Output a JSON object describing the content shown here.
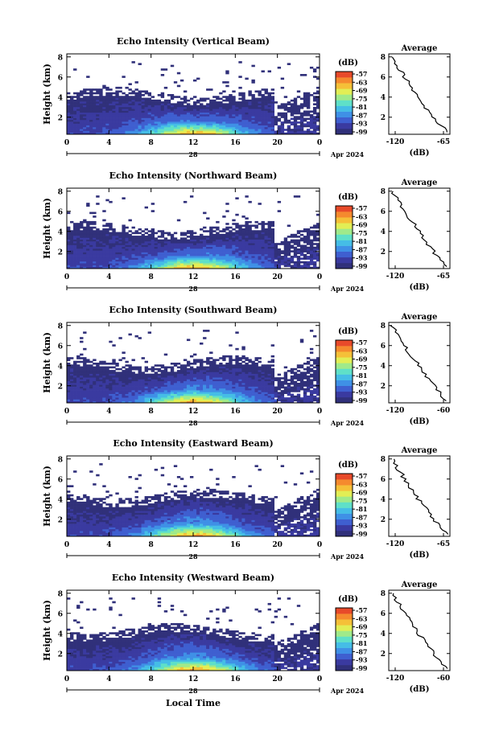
{
  "colors": {
    "plot_background": "#ffffff",
    "colormap": [
      "#30307a",
      "#3a3aa0",
      "#3f5fd0",
      "#3f90e6",
      "#45bde6",
      "#5fe0c8",
      "#a0ea8a",
      "#e2ee55",
      "#f5c038",
      "#f58a2e",
      "#e84a2a"
    ]
  },
  "footer": {
    "xlabel": "Local Time"
  },
  "chart_data": [
    {
      "type": "heatmap",
      "title": "Echo Intensity (Vertical Beam)",
      "ylabel": "Height (km)",
      "x_ticks": [
        "0",
        "4",
        "8",
        "12",
        "16",
        "20",
        "0"
      ],
      "y_ticks": [
        "2",
        "4",
        "6",
        "8"
      ],
      "date_label": "28",
      "month_label": "Apr 2024",
      "colorbar": {
        "unit": "(dB)",
        "ticks": [
          "-57",
          "-63",
          "-69",
          "-75",
          "-81",
          "-87",
          "-93",
          "-99"
        ]
      },
      "average": {
        "title": "Average",
        "xlabel": "(dB)",
        "x_ticks": [
          "-120",
          "-65"
        ],
        "y_ticks": [
          "2",
          "4",
          "6",
          "8"
        ]
      }
    },
    {
      "type": "heatmap",
      "title": "Echo Intensity (Northward Beam)",
      "ylabel": "Height (km)",
      "x_ticks": [
        "0",
        "4",
        "8",
        "12",
        "16",
        "20",
        "0"
      ],
      "y_ticks": [
        "2",
        "4",
        "6",
        "8"
      ],
      "date_label": "28",
      "month_label": "Apr 2024",
      "colorbar": {
        "unit": "(dB)",
        "ticks": [
          "-57",
          "-63",
          "-69",
          "-75",
          "-81",
          "-87",
          "-93",
          "-99"
        ]
      },
      "average": {
        "title": "Average",
        "xlabel": "(dB)",
        "x_ticks": [
          "-120",
          "-65"
        ],
        "y_ticks": [
          "2",
          "4",
          "6",
          "8"
        ]
      }
    },
    {
      "type": "heatmap",
      "title": "Echo Intensity (Southward Beam)",
      "ylabel": "Height (km)",
      "x_ticks": [
        "0",
        "4",
        "8",
        "12",
        "16",
        "20",
        "0"
      ],
      "y_ticks": [
        "2",
        "4",
        "6",
        "8"
      ],
      "date_label": "28",
      "month_label": "Apr 2024",
      "colorbar": {
        "unit": "(dB)",
        "ticks": [
          "-57",
          "-63",
          "-69",
          "-75",
          "-81",
          "-87",
          "-93",
          "-99"
        ]
      },
      "average": {
        "title": "Average",
        "xlabel": "(dB)",
        "x_ticks": [
          "-120",
          "-60"
        ],
        "y_ticks": [
          "2",
          "4",
          "6",
          "8"
        ]
      }
    },
    {
      "type": "heatmap",
      "title": "Echo Intensity (Eastward Beam)",
      "ylabel": "Height (km)",
      "x_ticks": [
        "0",
        "4",
        "8",
        "12",
        "16",
        "20",
        "0"
      ],
      "y_ticks": [
        "2",
        "4",
        "6",
        "8"
      ],
      "date_label": "28",
      "month_label": "Apr 2024",
      "colorbar": {
        "unit": "(dB)",
        "ticks": [
          "-57",
          "-63",
          "-69",
          "-75",
          "-81",
          "-87",
          "-93",
          "-99"
        ]
      },
      "average": {
        "title": "Average",
        "xlabel": "(dB)",
        "x_ticks": [
          "-120",
          "-65"
        ],
        "y_ticks": [
          "2",
          "4",
          "6",
          "8"
        ]
      }
    },
    {
      "type": "heatmap",
      "title": "Echo Intensity (Westward Beam)",
      "ylabel": "Height (km)",
      "x_ticks": [
        "0",
        "4",
        "8",
        "12",
        "16",
        "20",
        "0"
      ],
      "y_ticks": [
        "2",
        "4",
        "6",
        "8"
      ],
      "date_label": "28",
      "month_label": "Apr 2024",
      "colorbar": {
        "unit": "(dB)",
        "ticks": [
          "-57",
          "-63",
          "-69",
          "-75",
          "-81",
          "-87",
          "-93",
          "-99"
        ]
      },
      "average": {
        "title": "Average",
        "xlabel": "(dB)",
        "x_ticks": [
          "-120",
          "-60"
        ],
        "y_ticks": [
          "2",
          "4",
          "6",
          "8"
        ]
      }
    }
  ]
}
